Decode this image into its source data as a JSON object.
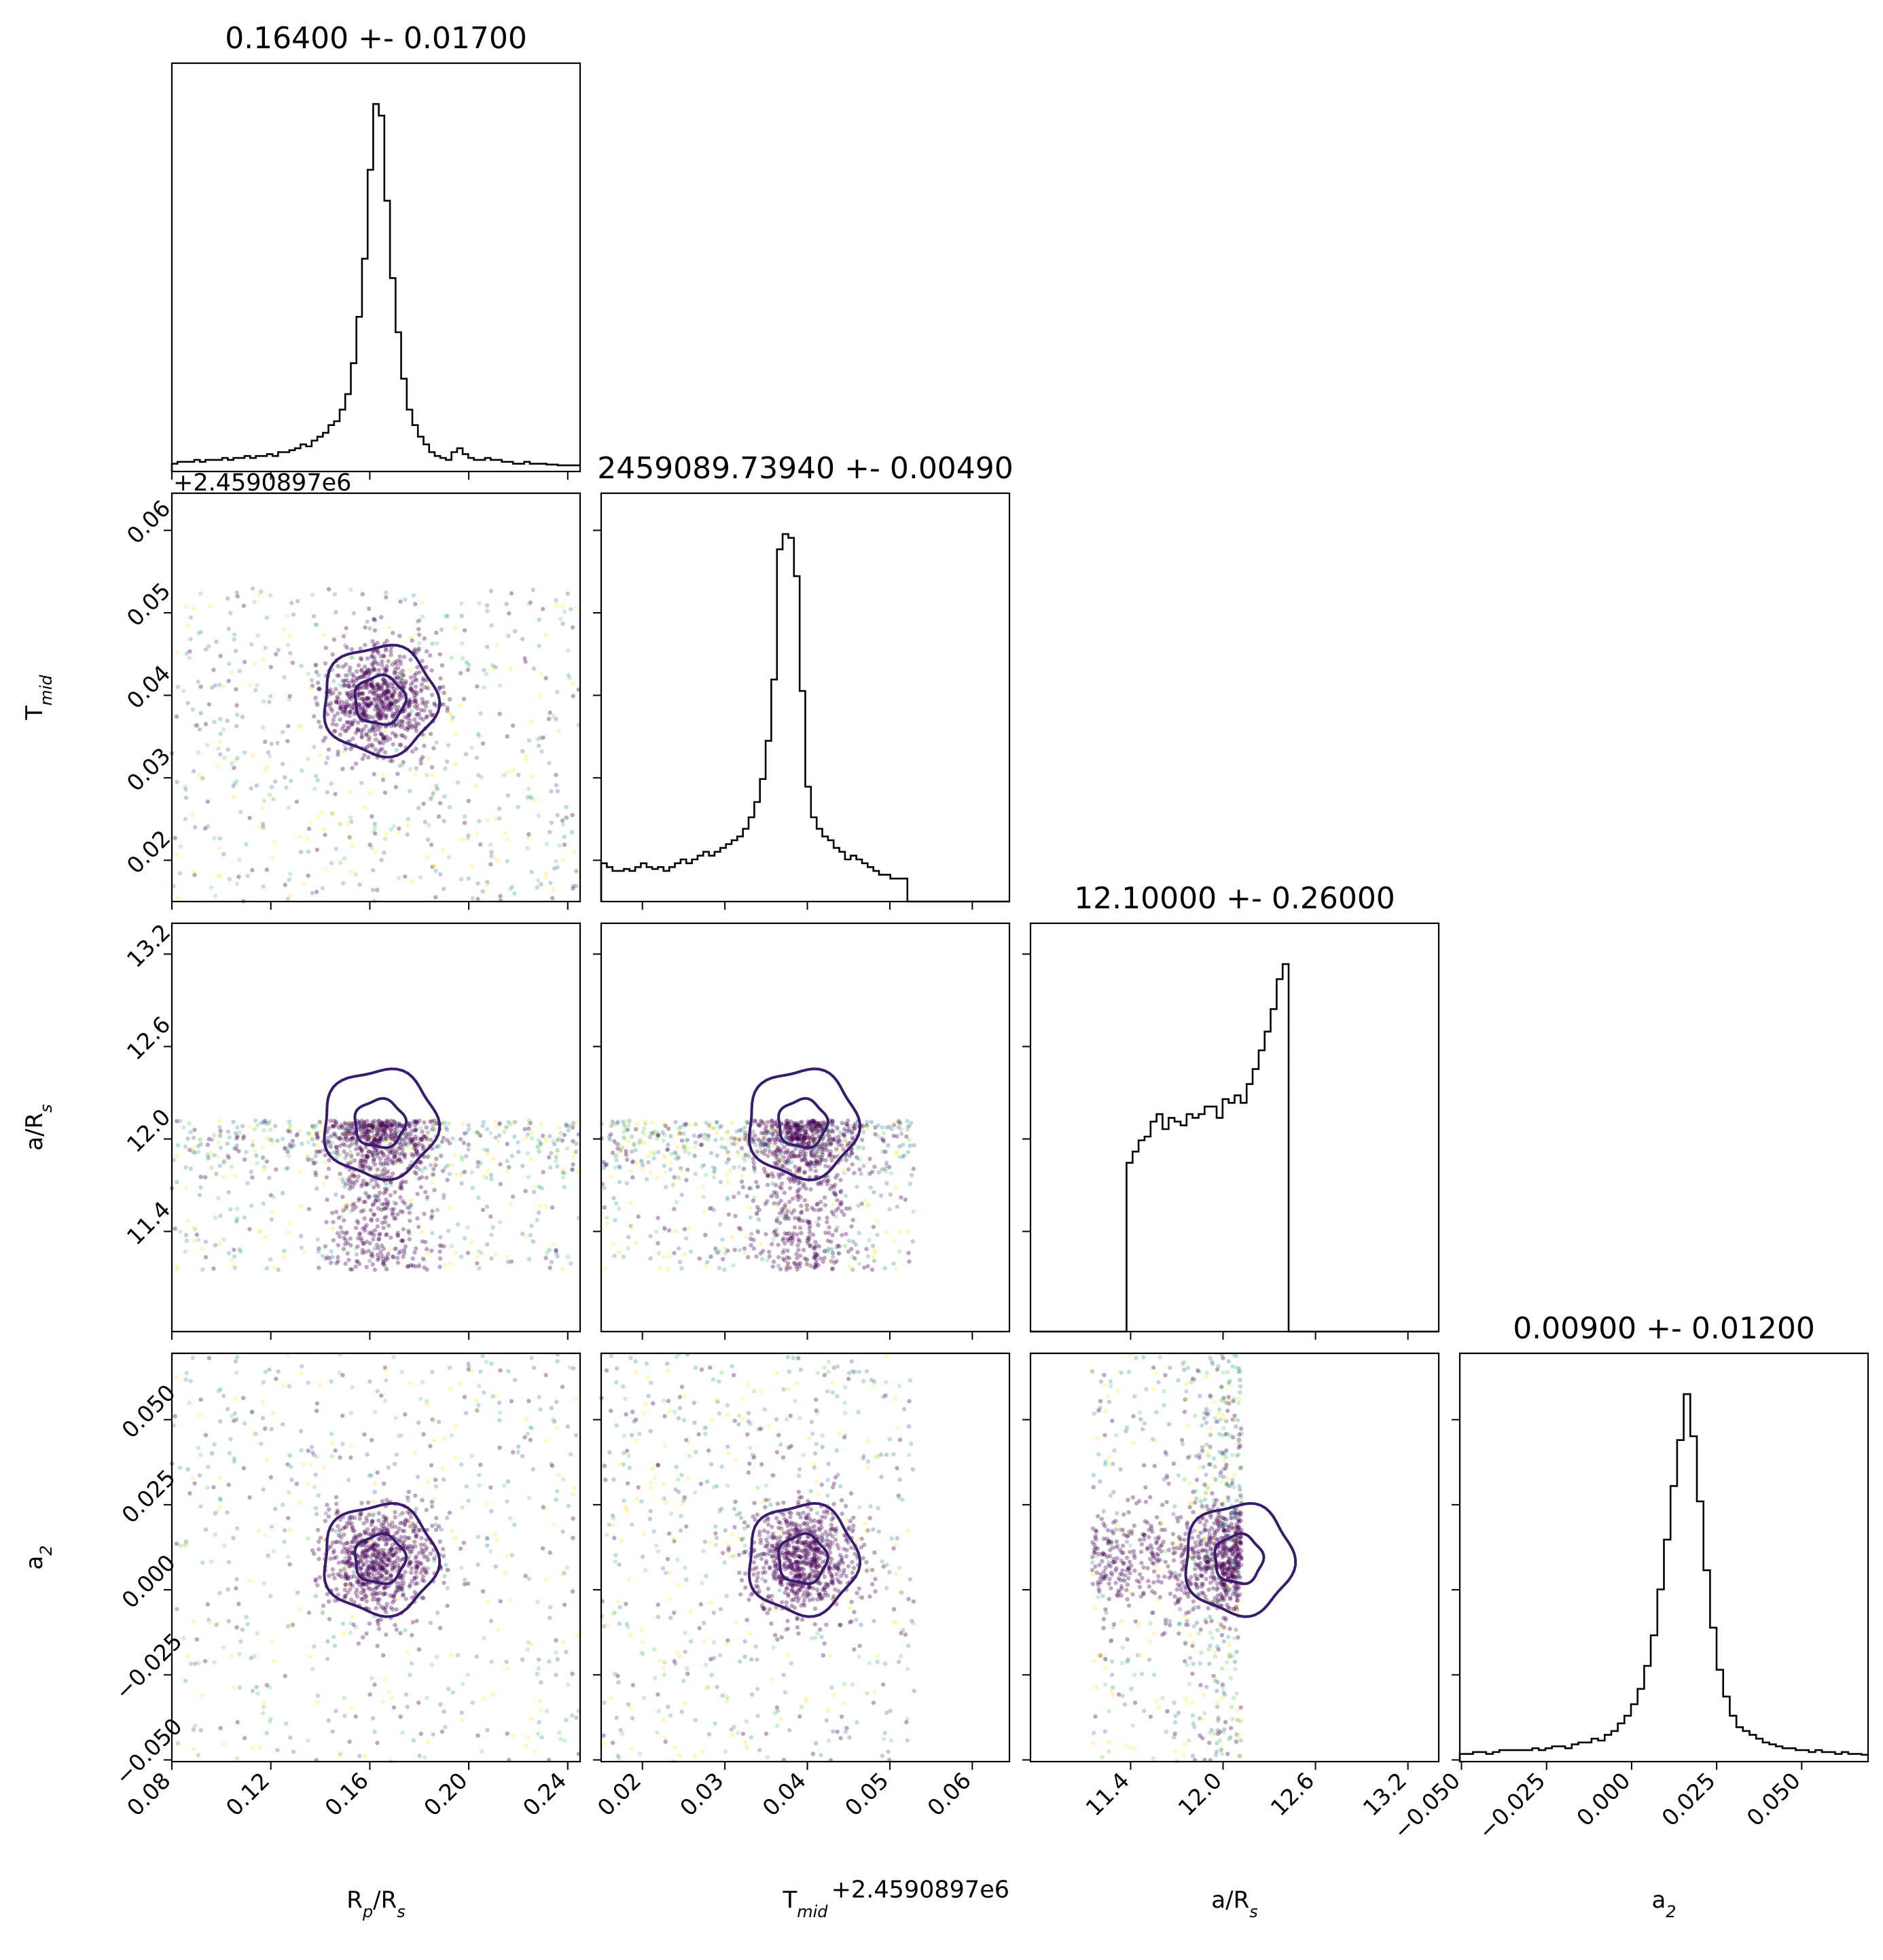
{
  "chart_data": {
    "type": "corner",
    "parameters": [
      {
        "id": "rp",
        "label": "R",
        "label_sub": "p",
        "label_suffix": "/R",
        "label_suffix_sub": "s",
        "range": [
          0.08,
          0.245
        ],
        "ticks": [
          "0.08",
          "0.12",
          "0.16",
          "0.20",
          "0.24"
        ],
        "tick_values": [
          0.08,
          0.12,
          0.16,
          0.2,
          0.24
        ],
        "title": "0.16400 +- 0.01700",
        "median": 0.164,
        "sigma": 0.017,
        "sample_range": [
          0.08,
          0.245
        ],
        "offset_text": ""
      },
      {
        "id": "tmid",
        "label": "T",
        "label_sub": "mid",
        "label_suffix": "",
        "label_suffix_sub": "",
        "range": [
          0.015,
          0.0645
        ],
        "ticks": [
          "0.02",
          "0.03",
          "0.04",
          "0.05",
          "0.06"
        ],
        "tick_values": [
          0.02,
          0.03,
          0.04,
          0.05,
          0.06
        ],
        "title": "2459089.73940 +- 0.00490",
        "median": 0.0394,
        "sigma": 0.0049,
        "sample_range": [
          0.015,
          0.053
        ],
        "offset_text": "+2.4590897e6"
      },
      {
        "id": "ars",
        "label": "a/R",
        "label_sub": "s",
        "label_suffix": "",
        "label_suffix_sub": "",
        "range": [
          10.75,
          13.4
        ],
        "ticks": [
          "11.4",
          "12.0",
          "12.6",
          "13.2"
        ],
        "tick_values": [
          11.4,
          12.0,
          12.6,
          13.2
        ],
        "title": "12.10000 +- 0.26000",
        "median": 12.1,
        "sigma": 0.26,
        "sample_range": [
          11.15,
          12.12
        ],
        "offset_text": ""
      },
      {
        "id": "a2",
        "label": "a",
        "label_sub": "2",
        "label_suffix": "",
        "label_suffix_sub": "",
        "range": [
          -0.0505,
          0.0695
        ],
        "ticks": [
          "−0.050",
          "−0.025",
          "0.000",
          "0.025",
          "0.050"
        ],
        "tick_values": [
          -0.05,
          -0.025,
          0.0,
          0.025,
          0.05
        ],
        "title": "0.00900 +- 0.01200",
        "median": 0.009,
        "sigma": 0.012,
        "sample_range": [
          -0.0505,
          0.0695
        ],
        "offset_text": ""
      }
    ],
    "histograms": {
      "rp": [
        2,
        2.5,
        2.5,
        2.5,
        3,
        2.5,
        3,
        3,
        3,
        3.5,
        3,
        3.5,
        3.5,
        4,
        3.5,
        4,
        4,
        4.5,
        4,
        5,
        5,
        5.5,
        6,
        7,
        6.5,
        8,
        9,
        10,
        12,
        13,
        16,
        20,
        28,
        40,
        55,
        78,
        95,
        92,
        70,
        50,
        36,
        24,
        16,
        12,
        9,
        7,
        5,
        4,
        3.5,
        3,
        5,
        6,
        4.5,
        3.5,
        3,
        3,
        3.5,
        3,
        3,
        2.5,
        2.5,
        2,
        2,
        2.5,
        2,
        2,
        2,
        1.8,
        1.8,
        1.6,
        1.6,
        1.6,
        1.6
      ],
      "tmid": [
        10,
        9,
        8,
        8,
        8.5,
        8,
        9,
        10,
        9,
        8.5,
        9,
        8,
        9,
        10,
        11,
        10,
        11,
        12,
        13,
        12,
        13,
        14,
        15,
        16,
        17,
        19,
        22,
        26,
        32,
        42,
        58,
        92,
        96,
        95,
        85,
        55,
        30,
        22,
        19,
        17,
        16,
        14,
        13,
        11,
        12,
        11,
        10,
        9,
        8,
        7,
        7,
        6,
        6,
        6,
        0,
        0,
        0,
        0,
        0,
        0,
        0,
        0,
        0,
        0,
        0,
        0,
        0,
        0,
        0,
        0,
        0,
        0
      ],
      "ars": [
        0,
        0,
        0,
        0,
        0,
        0,
        0,
        0,
        0,
        0,
        0,
        0,
        0,
        0,
        0,
        0,
        45,
        48,
        51,
        52,
        56,
        58,
        54,
        57,
        56,
        55,
        58,
        57,
        58,
        60,
        60,
        57,
        62,
        61,
        63,
        61,
        66,
        70,
        75,
        80,
        86,
        94,
        98,
        0,
        0,
        0,
        0,
        0,
        0,
        0,
        0,
        0,
        0,
        0,
        0,
        0,
        0,
        0,
        0,
        0,
        0,
        0,
        0,
        0,
        0,
        0,
        0,
        0
      ],
      "a2": [
        2,
        2,
        2.5,
        2.5,
        2,
        2.5,
        3,
        3,
        3,
        3,
        3,
        3.5,
        3,
        3.5,
        4,
        4,
        3.5,
        4.5,
        5,
        5,
        6,
        5.5,
        7,
        8,
        10,
        12,
        15,
        19,
        25,
        33,
        45,
        58,
        72,
        84,
        96,
        85,
        68,
        50,
        35,
        24,
        17,
        12,
        9,
        8,
        7,
        6,
        5,
        4.5,
        4,
        3.5,
        3.5,
        3,
        3,
        2.5,
        3,
        2.5,
        2.5,
        2,
        2.5,
        2,
        2,
        1.8
      ]
    },
    "contour_style": {
      "color": "#3a1c6e"
    },
    "scatter_colors": [
      "#440154",
      "#3b528b",
      "#21918c",
      "#5ec962",
      "#fde725"
    ]
  }
}
